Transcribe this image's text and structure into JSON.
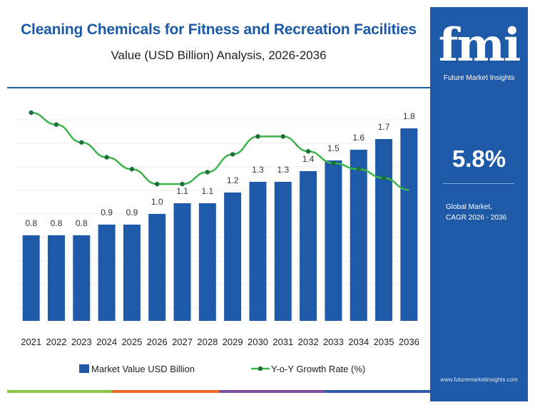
{
  "header": {
    "title": "Cleaning Chemicals for Fitness and Recreation Facilities",
    "subtitle": "Value (USD Billion) Analysis, 2026-2036"
  },
  "side_panel": {
    "logo_text": "fmi",
    "logo_subtitle": "Future Market Insights",
    "cagr_value": "5.8%",
    "cagr_label_line1": "Global Market,",
    "cagr_label_line2": "CAGR 2026 - 2036",
    "website": "www.futuremarketinsights.com"
  },
  "colors": {
    "bar": "#1e5aa8",
    "line": "#3db44a",
    "panel": "#1e5aa8",
    "title": "#1b5aa6",
    "strip": [
      "#8cc63f",
      "#f26a21",
      "#7b4fa0",
      "#2f5ea8"
    ]
  },
  "chart_data": {
    "type": "bar",
    "categories": [
      "2021",
      "2022",
      "2023",
      "2024",
      "2025",
      "2026",
      "2027",
      "2028",
      "2029",
      "2030",
      "2031",
      "2032",
      "2033",
      "2034",
      "2035",
      "2036"
    ],
    "series": [
      {
        "name": "Market Value USD Billion",
        "type": "bar",
        "values": [
          0.8,
          0.8,
          0.8,
          0.9,
          0.9,
          1.0,
          1.1,
          1.1,
          1.2,
          1.3,
          1.3,
          1.4,
          1.5,
          1.6,
          1.7,
          1.8
        ],
        "labels": [
          "0.8",
          "0.8",
          "0.8",
          "0.9",
          "0.9",
          "1.0",
          "1.1",
          "1.1",
          "1.2",
          "1.3",
          "1.3",
          "1.4",
          "1.5",
          "1.6",
          "1.7",
          "1.8"
        ]
      },
      {
        "name": "Y-o-Y Growth Rate (%)",
        "type": "line",
        "values": [
          7.0,
          6.6,
          6.0,
          5.5,
          5.1,
          4.6,
          4.6,
          5.0,
          5.6,
          6.2,
          6.2,
          5.7,
          5.3,
          5.1,
          4.8,
          4.4
        ]
      }
    ],
    "legend": {
      "position": "bottom",
      "bar_label": "Market Value USD Billion",
      "line_label": "Y-o-Y Growth Rate (%)"
    },
    "bar_ylim": [
      0,
      1.8
    ],
    "line_ylim": [
      0,
      7.0
    ],
    "grid": true
  }
}
